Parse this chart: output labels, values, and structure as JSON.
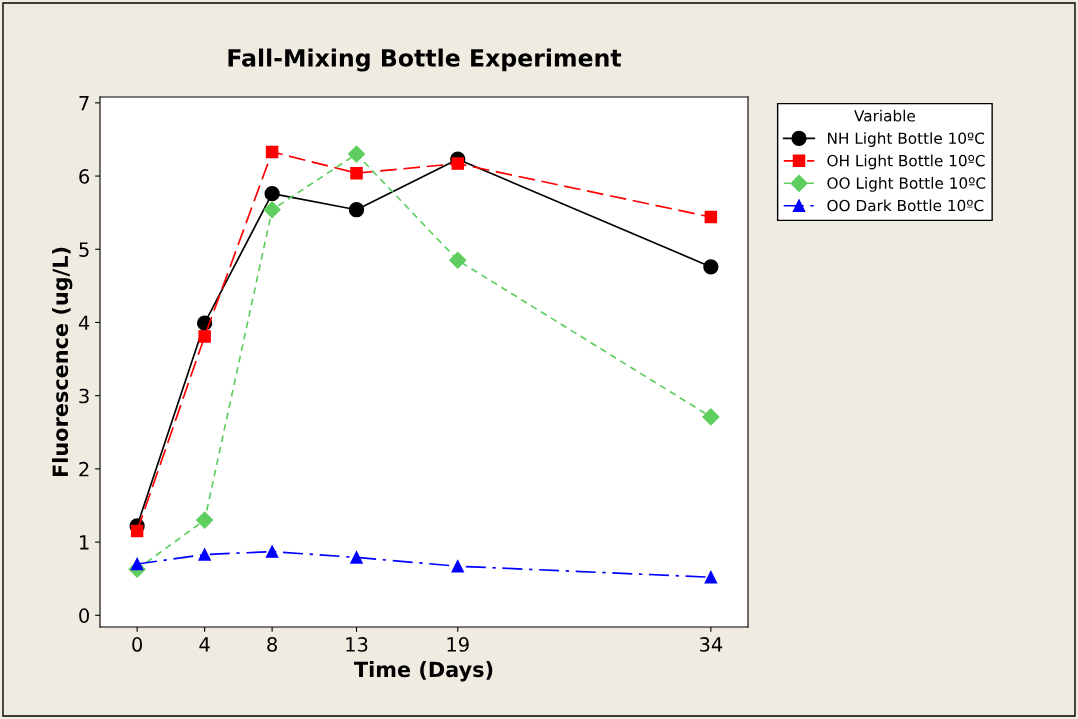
{
  "chart_data": {
    "type": "line",
    "title": "Fall-Mixing Bottle Experiment",
    "xlabel": "Time (Days)",
    "ylabel": "Fluorescence (ug/L)",
    "legend_title": "Variable",
    "legend": "top right",
    "grid": false,
    "x": [
      0,
      4,
      8,
      13,
      19,
      34
    ],
    "xlim": [
      -2.2,
      36.2
    ],
    "xticks": [
      0,
      4,
      8,
      13,
      19,
      34
    ],
    "ylim": [
      -0.16,
      7.08
    ],
    "yticks": [
      0,
      1,
      2,
      3,
      4,
      5,
      6,
      7
    ],
    "series": [
      {
        "name": "NH Light Bottle 10ºC",
        "color": "#000000",
        "marker": "circle",
        "line_style": "solid",
        "values": [
          1.22,
          3.99,
          5.76,
          5.54,
          6.23,
          4.76
        ]
      },
      {
        "name": "OH Light Bottle 10ºC",
        "color": "#ff0000",
        "marker": "square",
        "line_style": "dashed",
        "values": [
          1.15,
          3.81,
          6.33,
          6.04,
          6.17,
          5.44
        ]
      },
      {
        "name": "OO Light Bottle 10ºC",
        "color": "#5fce5f",
        "marker": "diamond",
        "line_style": "dotted",
        "values": [
          0.63,
          1.3,
          5.54,
          6.3,
          4.85,
          2.71
        ]
      },
      {
        "name": "OO Dark Bottle 10ºC",
        "color": "#0000ff",
        "marker": "triangle",
        "line_style": "dashdot",
        "values": [
          0.7,
          0.83,
          0.87,
          0.79,
          0.67,
          0.52
        ]
      }
    ]
  }
}
